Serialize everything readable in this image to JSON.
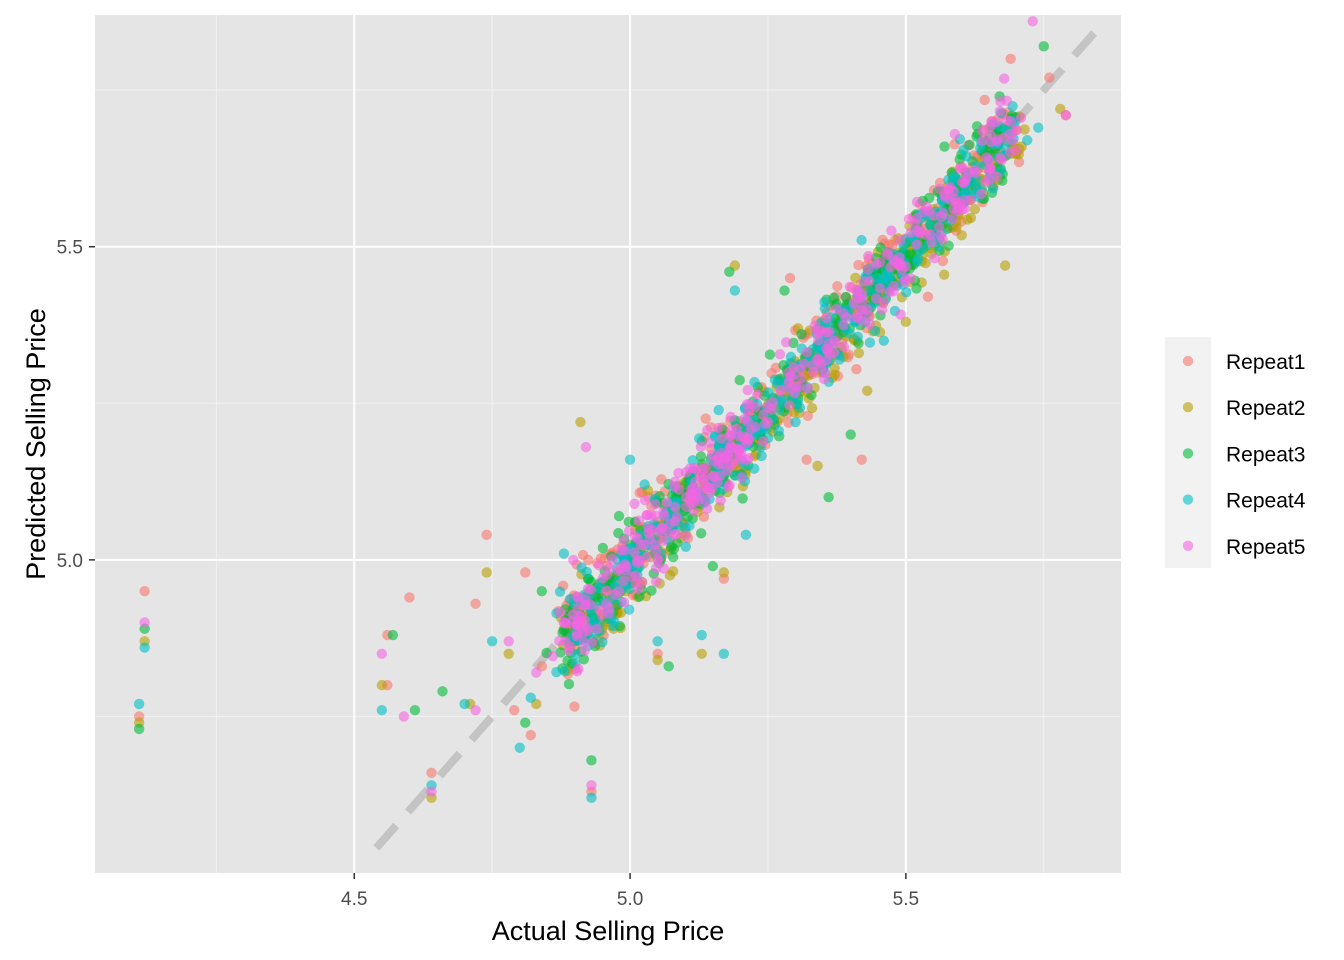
{
  "chart_data": {
    "type": "scatter",
    "xlabel": "Actual Selling Price",
    "ylabel": "Predicted Selling Price",
    "xlim": [
      4.03,
      5.89
    ],
    "ylim": [
      4.5,
      5.87
    ],
    "x_ticks": [
      4.5,
      5.0,
      5.5
    ],
    "y_ticks": [
      5.0,
      5.5
    ],
    "x_tick_labels": [
      "4.5",
      "5.0",
      "5.5"
    ],
    "y_tick_labels": [
      "5.0",
      "5.5"
    ],
    "reference_line": {
      "slope": 1,
      "intercept": 0,
      "style": "dashed",
      "color": "#c4c4c4"
    },
    "panel_background": "#e5e5e5",
    "grid": true,
    "legend_position": "right",
    "point_alpha": 0.6,
    "series": [
      {
        "name": "Repeat1",
        "color": "#F8766D",
        "offset": [
          0.0,
          0.01
        ],
        "points": [
          [
            4.12,
            4.95
          ],
          [
            4.11,
            4.75
          ],
          [
            4.56,
            4.88
          ],
          [
            4.56,
            4.8
          ],
          [
            4.6,
            4.94
          ],
          [
            4.64,
            4.66
          ],
          [
            4.72,
            4.93
          ],
          [
            4.74,
            5.04
          ],
          [
            4.79,
            4.76
          ],
          [
            4.81,
            4.98
          ],
          [
            4.82,
            4.72
          ],
          [
            4.84,
            4.83
          ],
          [
            5.05,
            4.85
          ],
          [
            5.17,
            4.97
          ],
          [
            5.13,
            5.11
          ],
          [
            5.29,
            5.45
          ],
          [
            5.54,
            5.42
          ],
          [
            5.79,
            5.71
          ],
          [
            5.76,
            5.77
          ],
          [
            5.69,
            5.8
          ],
          [
            5.6,
            5.54
          ],
          [
            5.42,
            5.16
          ],
          [
            5.32,
            5.16
          ],
          [
            4.93,
            4.63
          ]
        ]
      },
      {
        "name": "Repeat2",
        "color": "#B79F00",
        "offset": [
          0.004,
          -0.01
        ],
        "points": [
          [
            4.11,
            4.74
          ],
          [
            4.12,
            4.87
          ],
          [
            4.55,
            4.8
          ],
          [
            4.64,
            4.62
          ],
          [
            4.71,
            4.77
          ],
          [
            4.74,
            4.98
          ],
          [
            4.78,
            4.85
          ],
          [
            4.83,
            4.77
          ],
          [
            4.91,
            5.22
          ],
          [
            4.97,
            4.89
          ],
          [
            5.05,
            4.84
          ],
          [
            5.17,
            4.98
          ],
          [
            5.19,
            5.47
          ],
          [
            5.31,
            5.27
          ],
          [
            5.34,
            5.15
          ],
          [
            5.43,
            5.27
          ],
          [
            5.5,
            5.38
          ],
          [
            5.55,
            5.56
          ],
          [
            5.68,
            5.47
          ],
          [
            5.78,
            5.72
          ],
          [
            5.71,
            5.66
          ],
          [
            4.88,
            4.89
          ],
          [
            5.13,
            4.85
          ]
        ]
      },
      {
        "name": "Repeat3",
        "color": "#00BA38",
        "offset": [
          -0.004,
          0.0
        ],
        "points": [
          [
            4.11,
            4.73
          ],
          [
            4.12,
            4.89
          ],
          [
            4.57,
            4.88
          ],
          [
            4.61,
            4.76
          ],
          [
            4.66,
            4.79
          ],
          [
            4.81,
            4.74
          ],
          [
            4.84,
            4.95
          ],
          [
            4.89,
            4.91
          ],
          [
            4.93,
            4.68
          ],
          [
            5.07,
            4.83
          ],
          [
            5.15,
            4.99
          ],
          [
            5.18,
            5.46
          ],
          [
            5.28,
            5.43
          ],
          [
            5.36,
            5.1
          ],
          [
            5.45,
            5.46
          ],
          [
            5.52,
            5.55
          ],
          [
            5.63,
            5.68
          ],
          [
            5.67,
            5.74
          ],
          [
            5.75,
            5.82
          ],
          [
            5.57,
            5.66
          ],
          [
            5.4,
            5.2
          ],
          [
            4.98,
            5.07
          ]
        ]
      },
      {
        "name": "Repeat4",
        "color": "#00BFC4",
        "offset": [
          0.0,
          0.0
        ],
        "points": [
          [
            4.11,
            4.77
          ],
          [
            4.12,
            4.86
          ],
          [
            4.55,
            4.76
          ],
          [
            4.64,
            4.64
          ],
          [
            4.7,
            4.77
          ],
          [
            4.75,
            4.87
          ],
          [
            4.8,
            4.7
          ],
          [
            4.82,
            4.78
          ],
          [
            4.88,
            5.01
          ],
          [
            4.93,
            4.62
          ],
          [
            5.05,
            4.87
          ],
          [
            5.13,
            4.88
          ],
          [
            5.17,
            4.85
          ],
          [
            5.21,
            5.04
          ],
          [
            5.27,
            5.24
          ],
          [
            5.3,
            5.22
          ],
          [
            5.38,
            5.32
          ],
          [
            5.46,
            5.35
          ],
          [
            5.56,
            5.5
          ],
          [
            5.63,
            5.58
          ],
          [
            5.72,
            5.67
          ],
          [
            5.74,
            5.69
          ],
          [
            5.19,
            5.43
          ],
          [
            5.0,
            5.16
          ]
        ]
      },
      {
        "name": "Repeat5",
        "color": "#F564E3",
        "offset": [
          0.002,
          0.004
        ],
        "points": [
          [
            4.12,
            4.9
          ],
          [
            4.55,
            4.85
          ],
          [
            4.59,
            4.75
          ],
          [
            4.64,
            4.63
          ],
          [
            4.72,
            4.76
          ],
          [
            4.78,
            4.87
          ],
          [
            4.83,
            4.82
          ],
          [
            4.92,
            5.18
          ],
          [
            4.93,
            4.64
          ],
          [
            4.98,
            4.95
          ],
          [
            5.06,
            5.03
          ],
          [
            5.12,
            5.1
          ],
          [
            5.2,
            5.16
          ],
          [
            5.25,
            5.22
          ],
          [
            5.31,
            5.29
          ],
          [
            5.37,
            5.35
          ],
          [
            5.43,
            5.4
          ],
          [
            5.49,
            5.47
          ],
          [
            5.55,
            5.55
          ],
          [
            5.61,
            5.61
          ],
          [
            5.69,
            5.7
          ],
          [
            5.73,
            5.86
          ],
          [
            5.79,
            5.71
          ],
          [
            4.88,
            4.9
          ]
        ]
      }
    ]
  }
}
